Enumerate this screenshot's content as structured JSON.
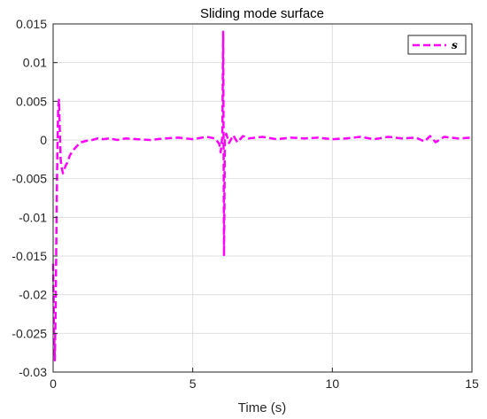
{
  "chart_data": {
    "type": "line",
    "title": "Sliding mode surface",
    "xlabel": "Time (s)",
    "ylabel": "",
    "xlim": [
      0,
      15
    ],
    "ylim": [
      -0.03,
      0.015
    ],
    "xticks": [
      0,
      5,
      10,
      15
    ],
    "yticks": [
      -0.03,
      -0.025,
      -0.02,
      -0.015,
      -0.01,
      -0.005,
      0,
      0.005,
      0.01,
      0.015
    ],
    "xtick_labels": [
      "0",
      "5",
      "10",
      "15"
    ],
    "ytick_labels": [
      "-0.03",
      "-0.025",
      "-0.02",
      "-0.015",
      "-0.01",
      "-0.005",
      "0",
      "0.005",
      "0.01",
      "0.015"
    ],
    "grid": true,
    "legend_position": "top-right",
    "series": [
      {
        "name": "s",
        "color": "#ff00ff",
        "line_style": "dashed",
        "x": [
          0,
          0.03,
          0.06,
          0.09,
          0.12,
          0.15,
          0.18,
          0.21,
          0.24,
          0.27,
          0.3,
          0.35,
          0.4,
          0.45,
          0.5,
          0.55,
          0.6,
          0.7,
          0.8,
          0.9,
          1.0,
          1.2,
          1.4,
          1.6,
          1.8,
          2.0,
          2.3,
          2.6,
          3.0,
          3.5,
          4.0,
          4.5,
          5.0,
          5.5,
          5.8,
          5.95,
          6.0,
          6.03,
          6.06,
          6.09,
          6.12,
          6.15,
          6.2,
          6.3,
          6.45,
          6.6,
          6.8,
          7.0,
          7.5,
          8.0,
          8.5,
          9.0,
          9.5,
          10.0,
          10.5,
          11.0,
          11.5,
          12.0,
          12.5,
          13.0,
          13.3,
          13.5,
          13.7,
          14.0,
          14.5,
          15.0
        ],
        "y": [
          -0.016,
          -0.024,
          -0.0285,
          -0.022,
          -0.011,
          -0.002,
          0.004,
          0.0052,
          0.001,
          -0.0025,
          -0.0035,
          -0.0043,
          -0.0038,
          -0.0033,
          -0.003,
          -0.0025,
          -0.002,
          -0.0014,
          -0.001,
          -0.0006,
          -0.0003,
          -0.0001,
          0.0,
          0.0002,
          0.0001,
          0.0002,
          0.0,
          0.0002,
          0.0001,
          0.0,
          0.0002,
          0.0003,
          0.0001,
          0.0004,
          0.0002,
          -0.0005,
          -0.0016,
          -0.0006,
          0.0005,
          0.014,
          -0.015,
          0.0,
          0.0008,
          -0.0004,
          0.0006,
          -0.0003,
          0.0005,
          0.0002,
          0.0004,
          0.0001,
          0.0003,
          0.0002,
          0.0003,
          0.0001,
          0.0002,
          0.0004,
          0.0001,
          0.0004,
          0.0002,
          0.0003,
          -0.0002,
          0.0005,
          -0.0003,
          0.0004,
          0.0002,
          0.0003
        ]
      }
    ]
  }
}
